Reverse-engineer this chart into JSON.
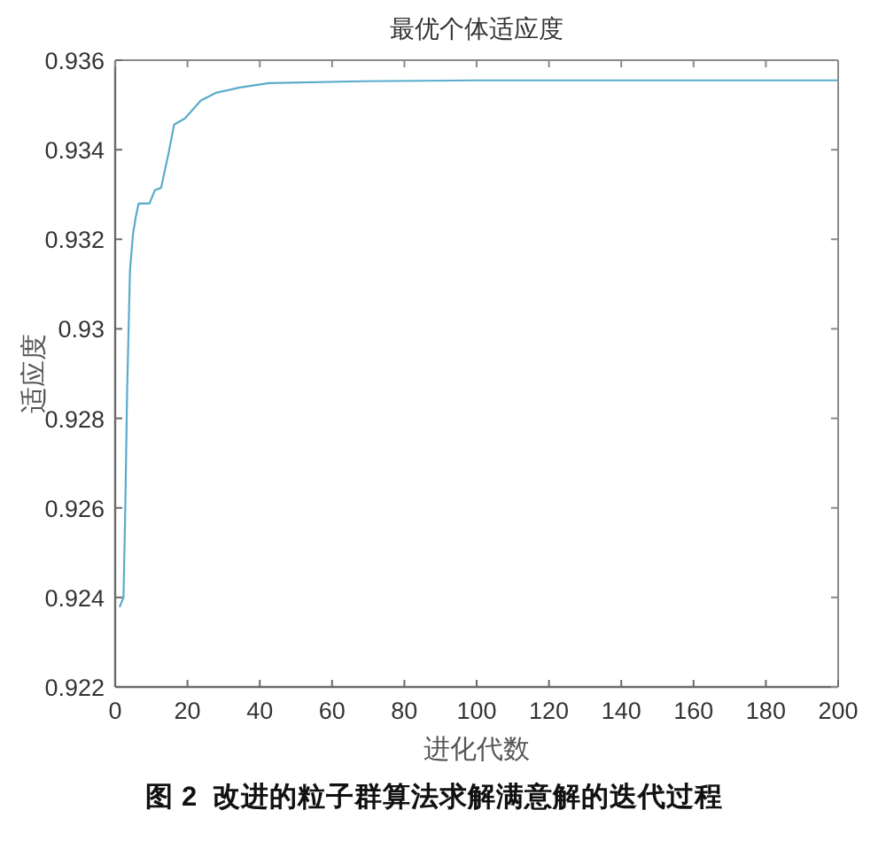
{
  "chart_data": {
    "type": "line",
    "title": "最优个体适应度",
    "xlabel": "进化代数",
    "ylabel": "适应度",
    "annotations": [
      "图 2  改进的粒子群算法求解满意解的迭代过程"
    ],
    "x": [
      1.3,
      2.3,
      2.8,
      3.3,
      4.1,
      4.9,
      5.7,
      6.5,
      9.5,
      11,
      12.7,
      14.7,
      16.3,
      19.3,
      23.7,
      27.8,
      34.4,
      42.5,
      68.7,
      100,
      200
    ],
    "series": [
      {
        "color": "#5aabcc",
        "values": [
          0.9238,
          0.924,
          0.926,
          0.9286,
          0.9313,
          0.9321,
          0.9325,
          0.9328,
          0.9328,
          0.9331,
          0.93315,
          0.9339,
          0.93456,
          0.9347,
          0.9351,
          0.93527,
          0.93539,
          0.93549,
          0.93553,
          0.93555,
          0.93555
        ]
      }
    ],
    "xlim": [
      0,
      200
    ],
    "ylim": [
      0.922,
      0.936
    ],
    "xticks": [
      0,
      20,
      40,
      60,
      80,
      100,
      120,
      140,
      160,
      180,
      200
    ],
    "yticks": [
      0.922,
      0.924,
      0.926,
      0.928,
      0.93,
      0.932,
      0.934,
      0.936
    ]
  }
}
